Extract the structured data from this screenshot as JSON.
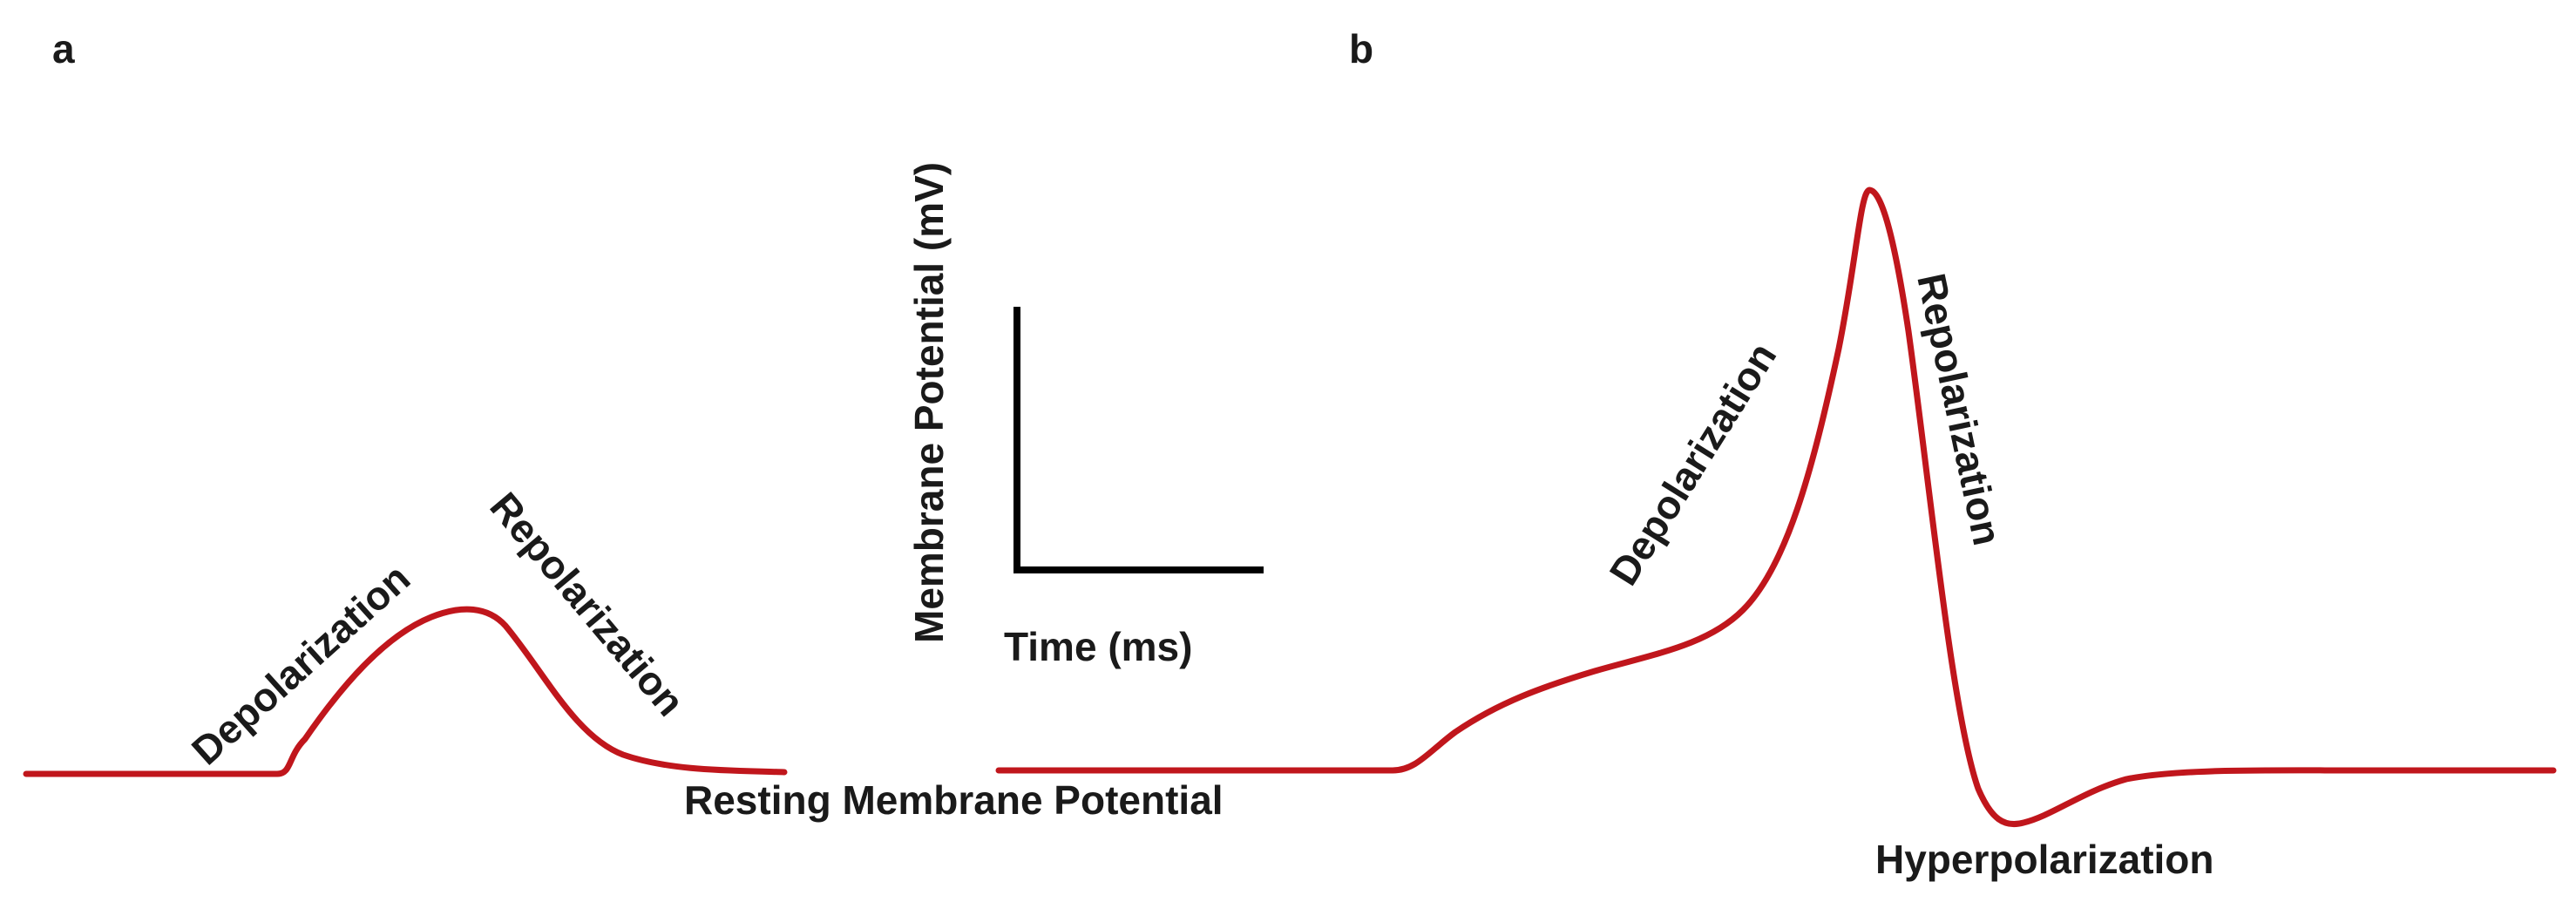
{
  "colors": {
    "trace": "#c0161c",
    "scale_bar": "#000000",
    "text": "#1a1a1a",
    "background": "#ffffff"
  },
  "panel_a": {
    "label": "a",
    "depolarization_label": "Depolarization",
    "repolarization_label": "Repolarization"
  },
  "panel_b": {
    "label": "b",
    "depolarization_label": "Depolarization",
    "repolarization_label": "Repolarization",
    "hyperpolarization_label": "Hyperpolarization"
  },
  "resting_label": "Resting Membrane Potential",
  "scale_bar": {
    "y_label": "Membrane Potential (mV)",
    "x_label": "Time (ms)"
  }
}
